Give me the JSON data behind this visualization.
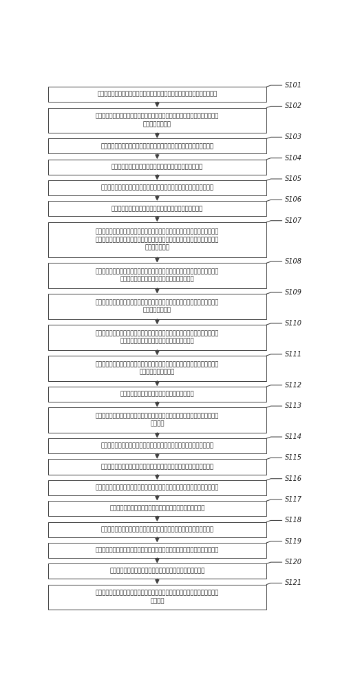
{
  "background_color": "#ffffff",
  "box_color": "#ffffff",
  "box_edge_color": "#404040",
  "arrow_color": "#404040",
  "steps": [
    {
      "id": "S101",
      "text": "根据预设时间长度和预设采样频率，对电力信号进行采样，生成采样数据序列",
      "lines": 1
    },
    {
      "id": "S102",
      "text": "对所述采样数据序列的基波频率进行初测，获得初步基波频率，并以所述初步基\n波频率为参考频率",
      "lines": 2
    },
    {
      "id": "S103",
      "text": "将所述参考频率的余弦函数与所述采样数据序列相乘，生成实数向量序列",
      "lines": 1
    },
    {
      "id": "S104",
      "text": "对所述实数向量序列进行数字滤波，生成实数向量滤波序列",
      "lines": 1
    },
    {
      "id": "S105",
      "text": "将所述参考频率的正弦函数与所述采样数据序列相乘，生成虚数向量序列",
      "lines": 1
    },
    {
      "id": "S106",
      "text": "对所述虚数向量序列进行数字滤波，生成虚数向量滤波序列",
      "lines": 1
    },
    {
      "id": "S107",
      "text": "分别将所述实数向量滤波序列和所述虚数向量滤波序列等分为两段序列，生成实\n数向量滤波前段序列、实数向量滤波后段序列、虚数向量滤波前段序列和虚数向\n量滤波后段序列",
      "lines": 3
    },
    {
      "id": "S108",
      "text": "对所述实数向量滤波前段序列和所述虚数向量滤波前段序列分别进行积分运算，\n生成前段序列实数积分值和前段序列虚数积分值",
      "lines": 2
    },
    {
      "id": "S109",
      "text": "根据预设的相位转换规则，将所述前段序列实数积分值与所述前段序列虚数积分\n值转换为第一相位",
      "lines": 2
    },
    {
      "id": "S110",
      "text": "对所述实数向量滤波后段序列和所述虚数向量滤波后段序列分别进行积分运算，\n生成后段序列实数积分值和后段序列虚数积分值",
      "lines": 2
    },
    {
      "id": "S111",
      "text": "根据所述预设的相位转换规则，将所述后段序列实数积分值和所述后段序列虚数\n积分值转换为第二相位",
      "lines": 2
    },
    {
      "id": "S112",
      "text": "将所述第二相位减去所述第一相位，生成相位差",
      "lines": 1
    },
    {
      "id": "S113",
      "text": "根据预设的频率转换规则，将所述相位差和所述参考频率转换为所述电力信号的\n基波频率",
      "lines": 2
    },
    {
      "id": "S114",
      "text": "以所述基波频率为参考频率，并获取与所述基波频率对应的数字滤波参数",
      "lines": 1
    },
    {
      "id": "S115",
      "text": "将所述参考频率的余弦函数与所述采样数据序列相乘，生成实数向量序列",
      "lines": 1
    },
    {
      "id": "S116",
      "text": "以所述数字滤波参数对所述实数向量序列进行数字滤波，生成实数向量滤波序列",
      "lines": 1
    },
    {
      "id": "S117",
      "text": "对所述实数向量滤波序列进行积分运算，生成实数向量积分值",
      "lines": 1
    },
    {
      "id": "S118",
      "text": "将所述参考频率的正弦函数与所述采样数据序列相乘，获得虚数向量序列",
      "lines": 1
    },
    {
      "id": "S119",
      "text": "以所述数字滤波参数对所述虚数向量序列进行数字滤波，生成虚数向量滤波序列",
      "lines": 1
    },
    {
      "id": "S120",
      "text": "对所述虚数向量滤波序列进行积分运算，生成虚数向量积分值",
      "lines": 1
    },
    {
      "id": "S121",
      "text": "根据预设的幅值转换规则，将所述实数向量积分值和所述虚数向量积分值转换为\n基波幅值",
      "lines": 2
    }
  ]
}
